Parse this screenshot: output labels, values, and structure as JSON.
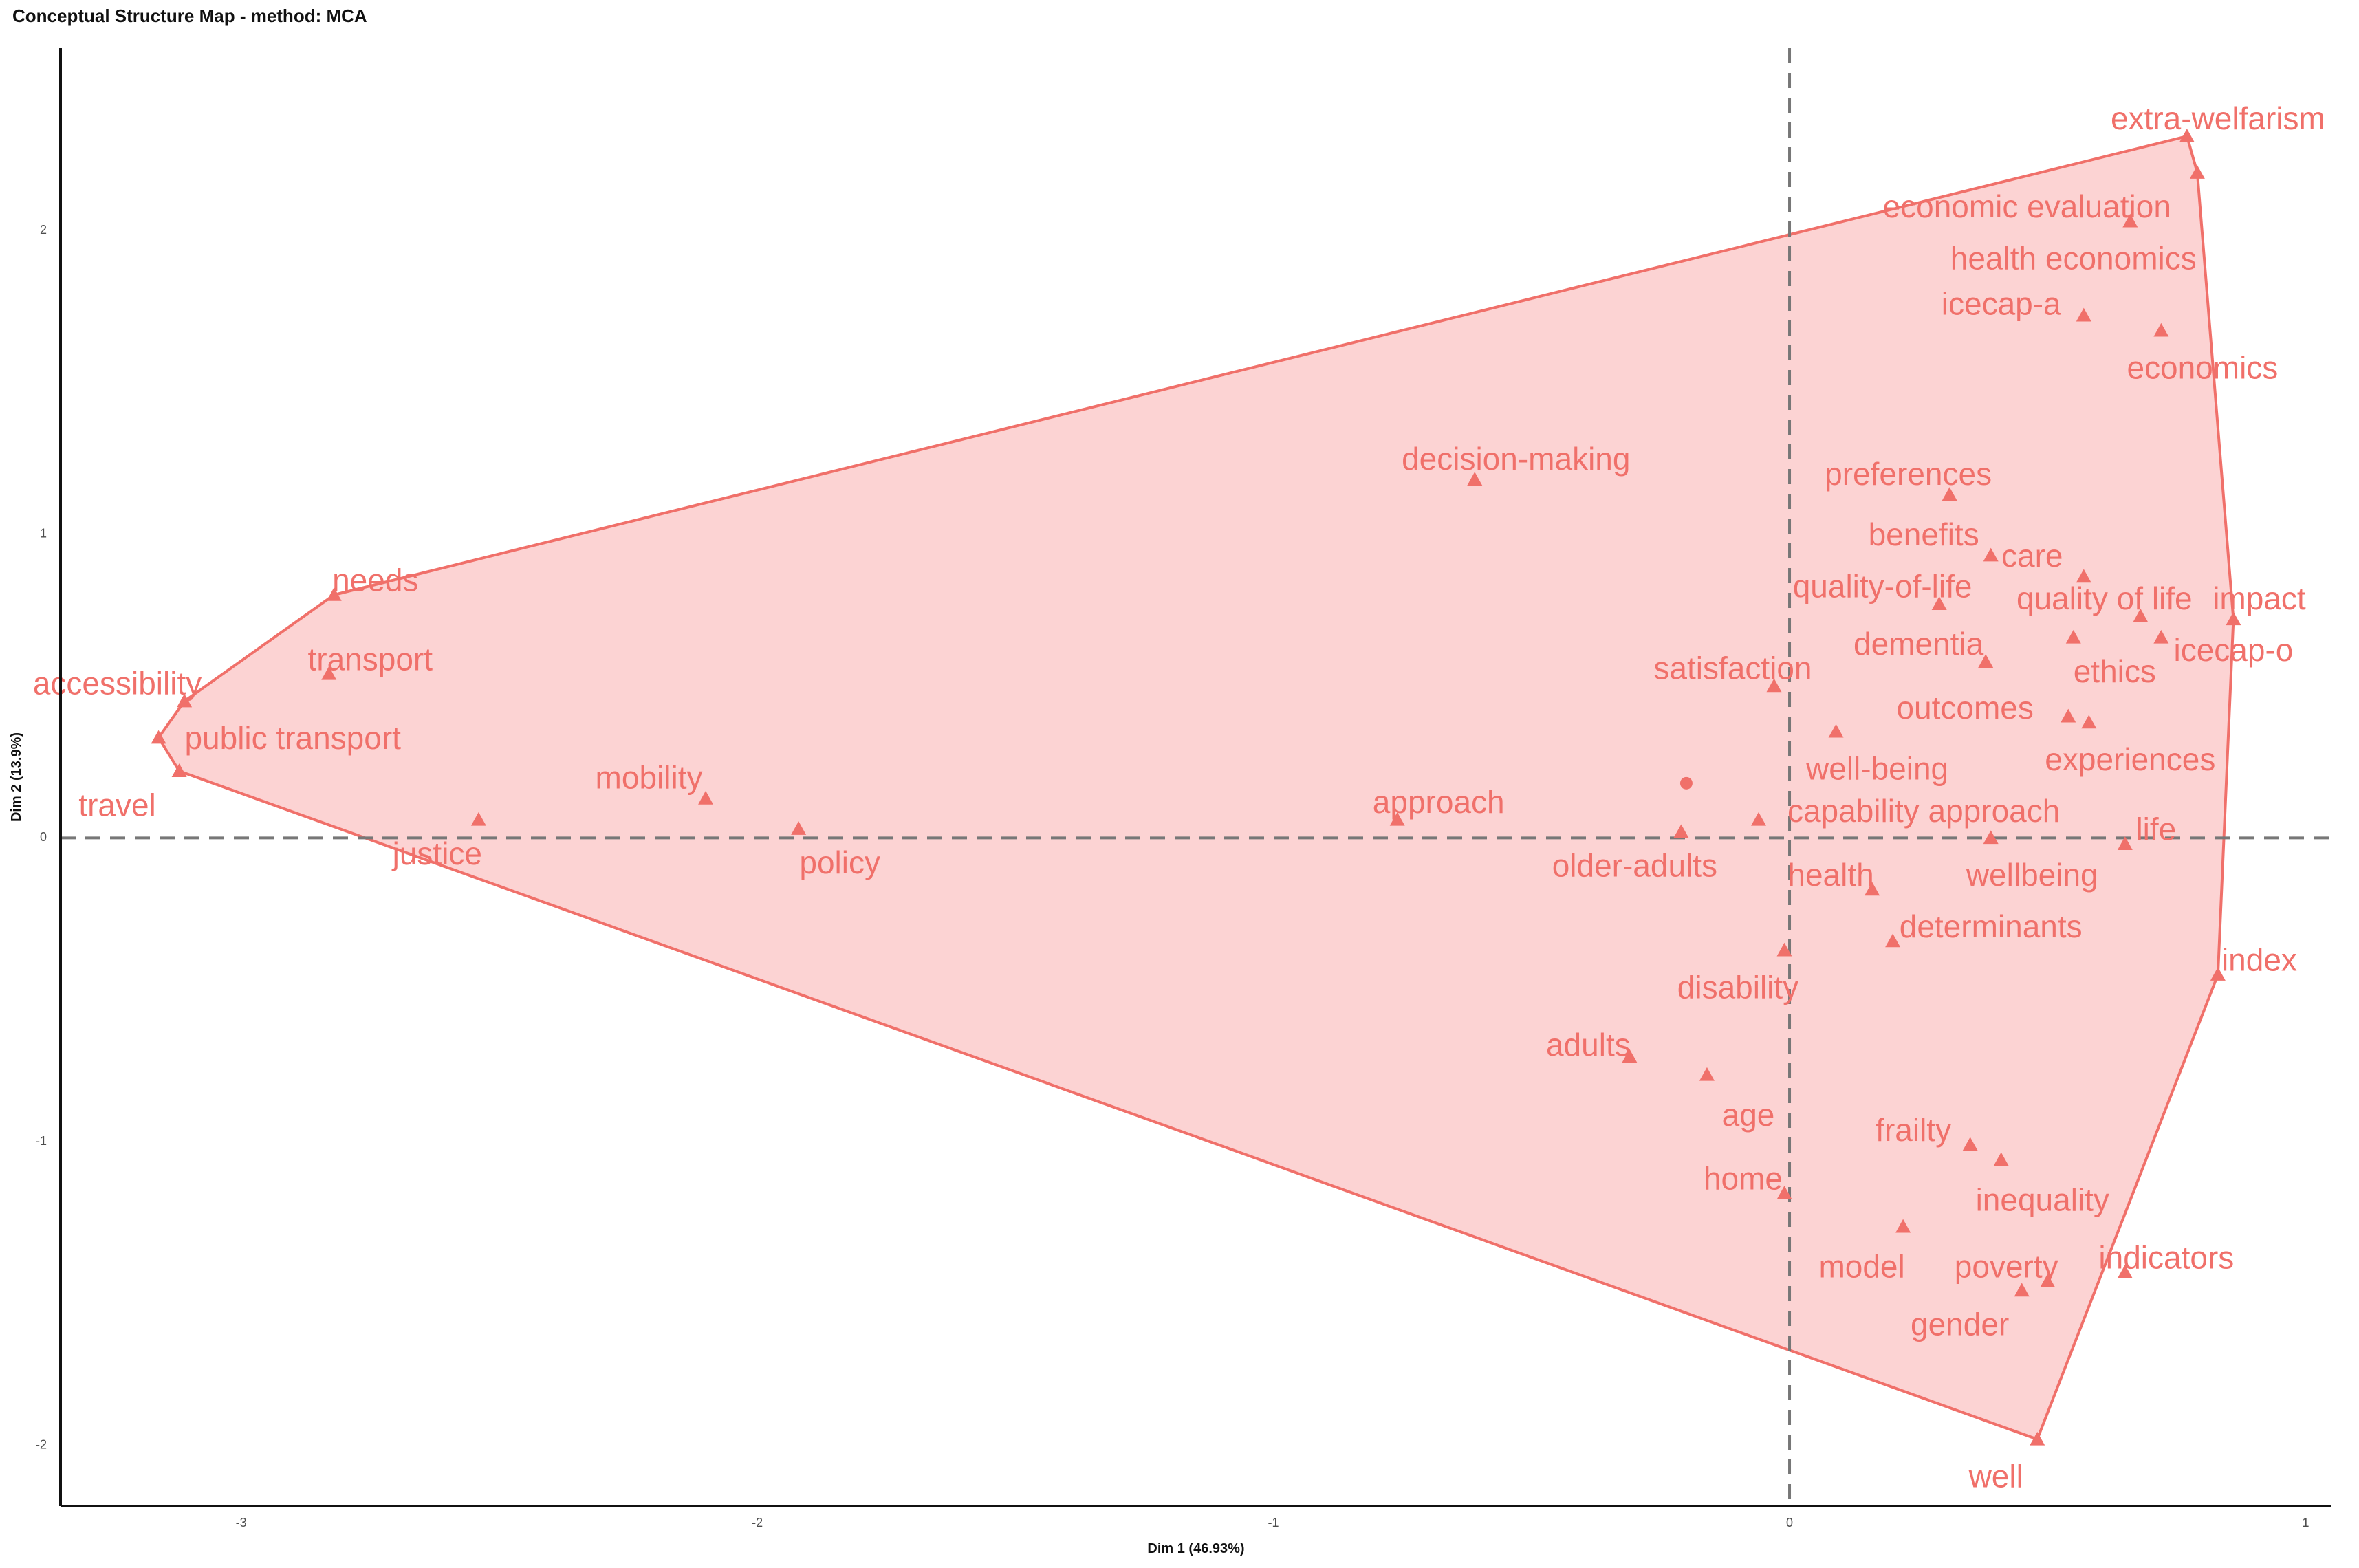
{
  "title": "Conceptual Structure Map - method: MCA",
  "chart_data": {
    "type": "scatter",
    "title": "Conceptual Structure Map - method: MCA",
    "xlabel": "Dim 1 (46.93%)",
    "ylabel": "Dim 2 (13.9%)",
    "xlim": [
      -3.35,
      1.05
    ],
    "ylim": [
      -2.2,
      2.6
    ],
    "x_ticks": [
      -3,
      -2,
      -1,
      0,
      1
    ],
    "y_ticks": [
      -2,
      -1,
      0,
      1,
      2
    ],
    "x_tick_labels": [
      "-3",
      "-2",
      "-1",
      "0",
      "1"
    ],
    "y_tick_labels": [
      "-2",
      "-1",
      "0",
      "1",
      "2"
    ],
    "grid": false,
    "reference_lines": {
      "x": 0,
      "y": 0
    },
    "colors": {
      "cluster": "#F0706A",
      "cluster_fill": "#FCD3D3"
    },
    "centroid": {
      "x": -0.2,
      "y": 0.18
    },
    "hull": [
      {
        "x": 0.77,
        "y": 2.31
      },
      {
        "x": 0.79,
        "y": 2.19
      },
      {
        "x": 0.86,
        "y": 0.72
      },
      {
        "x": 0.83,
        "y": -0.45
      },
      {
        "x": 0.48,
        "y": -1.98
      },
      {
        "x": -3.12,
        "y": 0.22
      },
      {
        "x": -3.16,
        "y": 0.33
      },
      {
        "x": -3.11,
        "y": 0.45
      },
      {
        "x": -2.82,
        "y": 0.8
      }
    ],
    "points": [
      {
        "label": "extra-welfarism",
        "x": 0.77,
        "y": 2.31,
        "lx": 0.83,
        "ly": 2.36
      },
      {
        "label": "economic evaluation",
        "x": 0.66,
        "y": 2.03,
        "lx": 0.46,
        "ly": 2.07
      },
      {
        "label": "health economics",
        "x": 0.79,
        "y": 2.19,
        "lx": 0.55,
        "ly": 1.9
      },
      {
        "label": "icecap-a",
        "x": 0.57,
        "y": 1.72,
        "lx": 0.41,
        "ly": 1.75
      },
      {
        "label": "economics",
        "x": 0.72,
        "y": 1.67,
        "lx": 0.8,
        "ly": 1.54
      },
      {
        "label": "decision-making",
        "x": -0.61,
        "y": 1.18,
        "lx": -0.53,
        "ly": 1.24
      },
      {
        "label": "preferences",
        "x": 0.31,
        "y": 1.13,
        "lx": 0.23,
        "ly": 1.19
      },
      {
        "label": "benefits",
        "x": 0.39,
        "y": 0.93,
        "lx": 0.26,
        "ly": 0.99
      },
      {
        "label": "care",
        "x": 0.57,
        "y": 0.86,
        "lx": 0.47,
        "ly": 0.92
      },
      {
        "label": "quality-of-life",
        "x": 0.29,
        "y": 0.77,
        "lx": 0.18,
        "ly": 0.82
      },
      {
        "label": "quality of life",
        "x": 0.68,
        "y": 0.73,
        "lx": 0.61,
        "ly": 0.78
      },
      {
        "label": "impact",
        "x": 0.86,
        "y": 0.72,
        "lx": 0.91,
        "ly": 0.78
      },
      {
        "label": "icecap-o",
        "x": 0.72,
        "y": 0.66,
        "lx": 0.86,
        "ly": 0.61
      },
      {
        "label": "dementia",
        "x": 0.38,
        "y": 0.58,
        "lx": 0.25,
        "ly": 0.63
      },
      {
        "label": "ethics",
        "x": 0.55,
        "y": 0.66,
        "lx": 0.63,
        "ly": 0.54
      },
      {
        "label": "satisfaction",
        "x": -0.03,
        "y": 0.5,
        "lx": -0.11,
        "ly": 0.55
      },
      {
        "label": "outcomes",
        "x": 0.54,
        "y": 0.4,
        "lx": 0.34,
        "ly": 0.42
      },
      {
        "label": "experiences",
        "x": 0.58,
        "y": 0.38,
        "lx": 0.66,
        "ly": 0.25
      },
      {
        "label": "well-being",
        "x": 0.09,
        "y": 0.35,
        "lx": 0.17,
        "ly": 0.22
      },
      {
        "label": "capability approach",
        "x": -0.06,
        "y": 0.06,
        "lx": 0.26,
        "ly": 0.08
      },
      {
        "label": "approach",
        "x": -0.76,
        "y": 0.06,
        "lx": -0.68,
        "ly": 0.11
      },
      {
        "label": "older-adults",
        "x": -0.21,
        "y": 0.02,
        "lx": -0.3,
        "ly": -0.1
      },
      {
        "label": "health",
        "x": 0.16,
        "y": -0.17,
        "lx": 0.08,
        "ly": -0.13
      },
      {
        "label": "wellbeing",
        "x": 0.39,
        "y": 0.0,
        "lx": 0.47,
        "ly": -0.13
      },
      {
        "label": "life",
        "x": 0.65,
        "y": -0.02,
        "lx": 0.71,
        "ly": 0.02
      },
      {
        "label": "determinants",
        "x": 0.2,
        "y": -0.34,
        "lx": 0.39,
        "ly": -0.3
      },
      {
        "label": "index",
        "x": 0.83,
        "y": -0.45,
        "lx": 0.91,
        "ly": -0.41
      },
      {
        "label": "disability",
        "x": -0.01,
        "y": -0.37,
        "lx": -0.1,
        "ly": -0.5
      },
      {
        "label": "adults",
        "x": -0.31,
        "y": -0.72,
        "lx": -0.39,
        "ly": -0.69
      },
      {
        "label": "age",
        "x": -0.16,
        "y": -0.78,
        "lx": -0.08,
        "ly": -0.92
      },
      {
        "label": "frailty",
        "x": 0.35,
        "y": -1.01,
        "lx": 0.24,
        "ly": -0.97
      },
      {
        "label": "inequality",
        "x": 0.41,
        "y": -1.06,
        "lx": 0.49,
        "ly": -1.2
      },
      {
        "label": "home",
        "x": -0.01,
        "y": -1.17,
        "lx": -0.09,
        "ly": -1.13
      },
      {
        "label": "model",
        "x": 0.22,
        "y": -1.28,
        "lx": 0.14,
        "ly": -1.42
      },
      {
        "label": "poverty",
        "x": 0.5,
        "y": -1.46,
        "lx": 0.42,
        "ly": -1.42
      },
      {
        "label": "indicators",
        "x": 0.65,
        "y": -1.43,
        "lx": 0.73,
        "ly": -1.39
      },
      {
        "label": "gender",
        "x": 0.45,
        "y": -1.49,
        "lx": 0.33,
        "ly": -1.61
      },
      {
        "label": "well",
        "x": 0.48,
        "y": -1.98,
        "lx": 0.4,
        "ly": -2.11
      },
      {
        "label": "needs",
        "x": -2.82,
        "y": 0.8,
        "lx": -2.74,
        "ly": 0.84
      },
      {
        "label": "transport",
        "x": -2.83,
        "y": 0.54,
        "lx": -2.75,
        "ly": 0.58
      },
      {
        "label": "accessibility",
        "x": -3.11,
        "y": 0.45,
        "lx": -3.24,
        "ly": 0.5
      },
      {
        "label": "public transport",
        "x": -3.16,
        "y": 0.33,
        "lx": -2.9,
        "ly": 0.32
      },
      {
        "label": "travel",
        "x": -3.12,
        "y": 0.22,
        "lx": -3.24,
        "ly": 0.1
      },
      {
        "label": "mobility",
        "x": -2.1,
        "y": 0.13,
        "lx": -2.21,
        "ly": 0.19
      },
      {
        "label": "justice",
        "x": -2.54,
        "y": 0.06,
        "lx": -2.62,
        "ly": -0.06
      },
      {
        "label": "policy",
        "x": -1.92,
        "y": 0.03,
        "lx": -1.84,
        "ly": -0.09
      }
    ]
  }
}
